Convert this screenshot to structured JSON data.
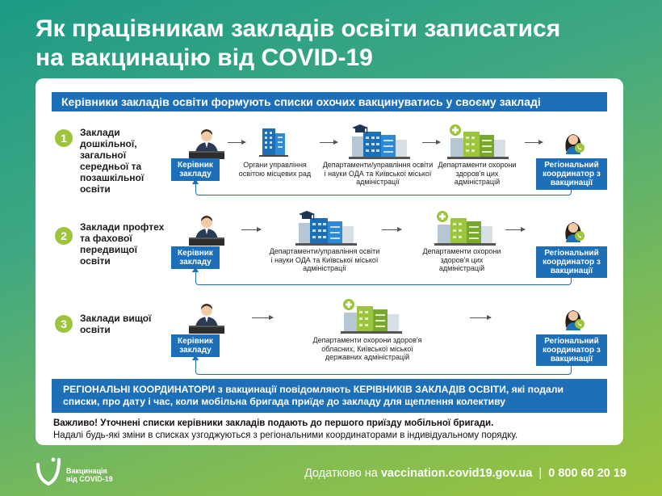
{
  "title_line1": "Як працівникам закладів освіти записатися",
  "title_line2": "на вакцинацію від COVID-19",
  "top_banner": "Керівники закладів освіти формують списки охочих вакцинуватись у своєму закладі",
  "rows": [
    {
      "num": "1",
      "label": "Заклади дошкільної, загальної середньої та позашкільної освіти",
      "boss": "Керівник закладу",
      "steps": [
        "Органи управління освітою місцевих рад",
        "Департаменти/управління освіти і науки ОДА та Київської міської адміністрації",
        "Департаменти охорони здоров'я цих адміністрацій"
      ],
      "coord": "Регіональний координатор з вакцинації"
    },
    {
      "num": "2",
      "label": "Заклади профтех та фахової передвищої освіти",
      "boss": "Керівник закладу",
      "steps": [
        "Департаменти/управління освіти і науки ОДА та Київської міської адміністрації",
        "Департаменти охорони здоров'я цих адміністрацій"
      ],
      "coord": "Регіональний координатор з вакцинації"
    },
    {
      "num": "3",
      "label": "Заклади вищої освіти",
      "boss": "Керівник закладу",
      "steps": [
        "Департаменти охорони здоров'я обласних, Київської міської державних адміністрацій"
      ],
      "coord": "Регіональний координатор з вакцинації"
    }
  ],
  "bottom_banner": "РЕГІОНАЛЬНІ КООРДИНАТОРИ з вакцинації повідомляють КЕРІВНИКІВ ЗАКЛАДІВ ОСВІТИ, які подали списки, про дату і час, коли мобільна бригада приїде до закладу для щеплення колективу",
  "important_bold": "Важливо! Уточнені списки керівники закладів подають до першого приїзду мобільної бригади.",
  "important_rest": "Надалі будь-які зміни в списках узгоджуються з регіональними координаторами в індивідуальному порядку.",
  "logo_line1": "Вакцинація",
  "logo_line2": "від COVID-19",
  "footer_prefix": "Додатково на",
  "footer_site": "vaccination.covid19.gov.ua",
  "footer_sep": "|",
  "footer_phone": "0 800 60 20 19",
  "colors": {
    "blue": "#1d6fb8",
    "green": "#9cc43c",
    "teal": "#1d9a86"
  }
}
